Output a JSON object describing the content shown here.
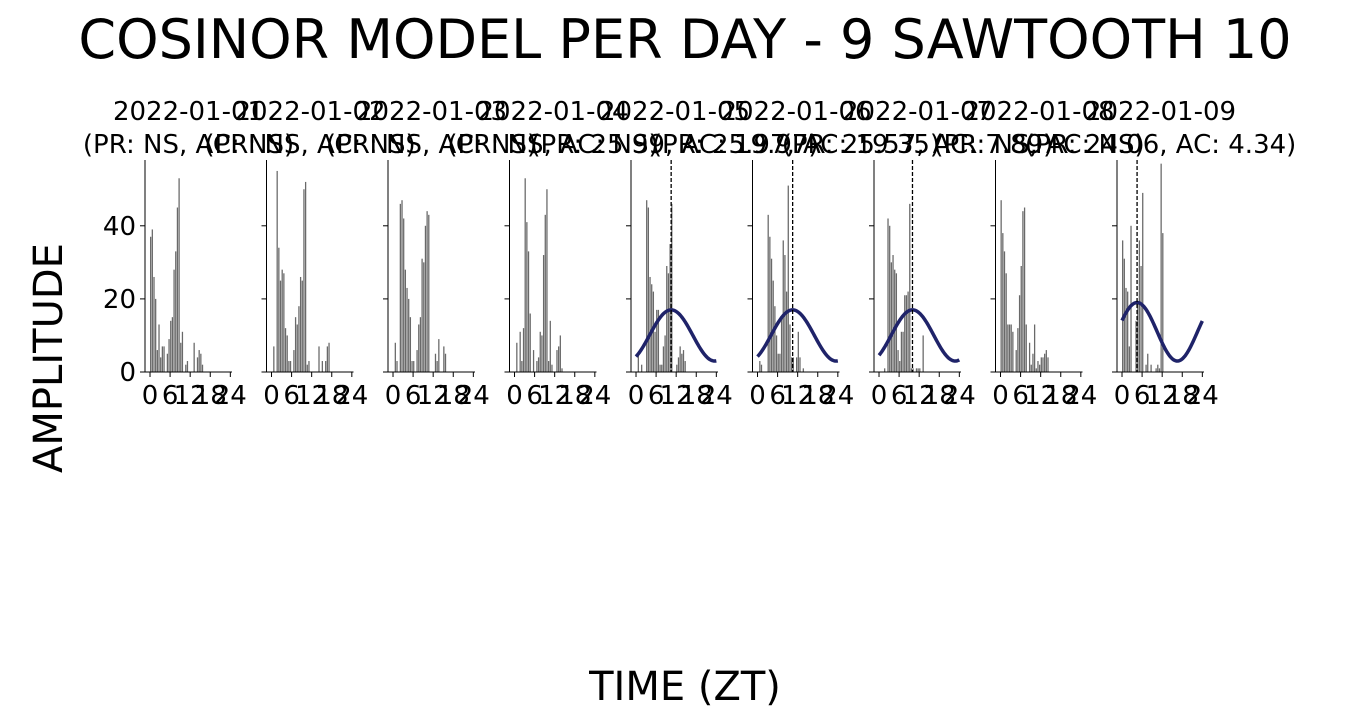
{
  "title": "COSINOR MODEL PER DAY - 9 SAWTOOTH 10",
  "xlabel": "TIME (ZT)",
  "ylabel": "AMPLITUDE",
  "colors": {
    "bars": "#696969",
    "fit": "#1f2369",
    "acrophase_line": "#000000",
    "axes": "#000000"
  },
  "chart_data": [
    {
      "type": "bar",
      "subtitle_line1": "2022-01-01",
      "subtitle_line2": "(PR: NS, AC: NS)",
      "x_ticks": [
        "0",
        "6",
        "12",
        "18",
        "24"
      ],
      "xlim": [
        -1.5,
        24.5
      ],
      "ylim": [
        0,
        58
      ],
      "y_ticks": [
        "0",
        "20",
        "40"
      ],
      "series": [
        {
          "type": "bar",
          "x_start": 0,
          "x_step": 0.5,
          "width": 0.5,
          "values": [
            37,
            39,
            26,
            20,
            6,
            13,
            4,
            7,
            7,
            0,
            5,
            9,
            14,
            15,
            28,
            33,
            45,
            53,
            8,
            11,
            0,
            2,
            3,
            0,
            0,
            0,
            8,
            0,
            4,
            6,
            5,
            2,
            0,
            0,
            0,
            0,
            0,
            0,
            0,
            0,
            0,
            0,
            0,
            0,
            0,
            0,
            0,
            0
          ]
        }
      ]
    },
    {
      "type": "bar",
      "subtitle_line1": "2022-01-02",
      "subtitle_line2": "(PR: NS, AC: NS)",
      "x_ticks": [
        "0",
        "6",
        "12",
        "18",
        "24"
      ],
      "xlim": [
        -1.5,
        24.5
      ],
      "ylim": [
        0,
        58
      ],
      "y_ticks": [
        "0",
        "20",
        "40"
      ],
      "series": [
        {
          "type": "bar",
          "x_start": 0,
          "x_step": 0.5,
          "width": 0.5,
          "values": [
            0,
            7,
            0,
            55,
            34,
            25,
            28,
            27,
            12,
            10,
            3,
            3,
            0,
            6,
            15,
            13,
            18,
            26,
            25,
            50,
            52,
            2,
            3,
            0,
            0,
            0,
            0,
            0,
            7,
            0,
            3,
            0,
            3,
            7,
            8,
            0,
            0,
            0,
            0,
            0,
            0,
            0,
            0,
            0,
            0,
            0,
            0,
            0
          ]
        }
      ]
    },
    {
      "type": "bar",
      "subtitle_line1": "2022-01-03",
      "subtitle_line2": "(PR: NS, AC: NS)",
      "x_ticks": [
        "0",
        "6",
        "12",
        "18",
        "24"
      ],
      "xlim": [
        -1.5,
        24.5
      ],
      "ylim": [
        0,
        58
      ],
      "y_ticks": [
        "0",
        "20",
        "40"
      ],
      "series": [
        {
          "type": "bar",
          "x_start": 0,
          "x_step": 0.5,
          "width": 0.5,
          "values": [
            0,
            8,
            3,
            0,
            46,
            47,
            42,
            28,
            23,
            20,
            15,
            3,
            3,
            0,
            6,
            13,
            15,
            31,
            30,
            40,
            44,
            43,
            0,
            0,
            0,
            5,
            3,
            9,
            0,
            0,
            7,
            5,
            0,
            0,
            0,
            0,
            0,
            0,
            0,
            0,
            0,
            0,
            0,
            0,
            0,
            0,
            0,
            0
          ]
        }
      ]
    },
    {
      "type": "bar",
      "subtitle_line1": "2022-01-04",
      "subtitle_line2": "(PR: NS, AC: NS)",
      "x_ticks": [
        "0",
        "6",
        "12",
        "18",
        "24"
      ],
      "xlim": [
        -1.5,
        24.5
      ],
      "ylim": [
        0,
        58
      ],
      "y_ticks": [
        "0",
        "20",
        "40"
      ],
      "series": [
        {
          "type": "bar",
          "x_start": 0,
          "x_step": 0.5,
          "width": 0.5,
          "values": [
            0,
            8,
            0,
            11,
            3,
            12,
            53,
            41,
            33,
            16,
            0,
            6,
            0,
            3,
            4,
            11,
            10,
            32,
            43,
            50,
            3,
            14,
            2,
            0,
            0,
            6,
            7,
            10,
            1,
            0,
            0,
            0,
            0,
            0,
            0,
            0,
            0,
            0,
            0,
            0,
            0,
            0,
            0,
            0,
            0,
            0,
            0,
            0
          ]
        }
      ]
    },
    {
      "type": "bar",
      "subtitle_line1": "2022-01-05",
      "subtitle_line2": "(PR: 25.99, AC: 19.97)",
      "x_ticks": [
        "0",
        "6",
        "12",
        "18",
        "24"
      ],
      "xlim": [
        -1.5,
        24.5
      ],
      "ylim": [
        0,
        58
      ],
      "y_ticks": [
        "0",
        "20",
        "40"
      ],
      "acrophase": 10.5,
      "fit": {
        "mesor": 10,
        "amplitude": 7,
        "period": 25.99
      },
      "series": [
        {
          "type": "bar",
          "x_start": 0,
          "x_step": 0.5,
          "width": 0.5,
          "values": [
            0,
            5,
            0,
            2,
            0,
            0,
            47,
            45,
            26,
            24,
            22,
            11,
            17,
            17,
            2,
            2,
            7,
            10,
            29,
            27,
            35,
            46,
            0,
            0,
            2,
            4,
            7,
            5,
            6,
            3,
            0,
            0,
            0,
            0,
            0,
            0,
            0,
            0,
            0,
            0,
            0,
            0,
            0,
            0,
            0,
            0,
            0,
            0
          ]
        }
      ]
    },
    {
      "type": "bar",
      "subtitle_line1": "2022-01-06",
      "subtitle_line2": "(PR: 25.97, AC: 19.35)",
      "x_ticks": [
        "0",
        "6",
        "12",
        "18",
        "24"
      ],
      "xlim": [
        -1.5,
        24.5
      ],
      "ylim": [
        0,
        58
      ],
      "y_ticks": [
        "0",
        "20",
        "40"
      ],
      "acrophase": 10.5,
      "fit": {
        "mesor": 10,
        "amplitude": 7,
        "period": 25.97
      },
      "series": [
        {
          "type": "bar",
          "x_start": 0,
          "x_step": 0.5,
          "width": 0.5,
          "values": [
            0,
            3,
            2,
            0,
            0,
            0,
            43,
            37,
            31,
            25,
            18,
            10,
            5,
            5,
            15,
            36,
            32,
            22,
            51,
            13,
            4,
            4,
            0,
            4,
            11,
            4,
            0,
            1,
            0,
            0,
            0,
            0,
            0,
            0,
            0,
            0,
            0,
            0,
            0,
            0,
            0,
            0,
            0,
            0,
            0,
            0,
            0,
            0
          ]
        }
      ]
    },
    {
      "type": "bar",
      "subtitle_line1": "2022-01-07",
      "subtitle_line2": "(PR: 25.57, AC: 7.89)",
      "x_ticks": [
        "0",
        "6",
        "12",
        "18",
        "24"
      ],
      "xlim": [
        -1.5,
        24.5
      ],
      "ylim": [
        0,
        58
      ],
      "y_ticks": [
        "0",
        "20",
        "40"
      ],
      "acrophase": 10,
      "fit": {
        "mesor": 10,
        "amplitude": 7,
        "period": 25.57
      },
      "series": [
        {
          "type": "bar",
          "x_start": 0,
          "x_step": 0.5,
          "width": 0.5,
          "values": [
            0,
            0,
            0,
            1,
            0,
            42,
            40,
            30,
            32,
            28,
            27,
            6,
            3,
            11,
            11,
            21,
            21,
            22,
            46,
            1,
            1,
            0,
            1,
            1,
            1,
            0,
            10,
            0,
            0,
            0,
            0,
            0,
            0,
            0,
            0,
            0,
            0,
            0,
            0,
            0,
            0,
            0,
            0,
            0,
            0,
            0,
            0,
            0
          ]
        }
      ]
    },
    {
      "type": "bar",
      "subtitle_line1": "2022-01-08",
      "subtitle_line2": "(PR: NS, AC: NS)",
      "x_ticks": [
        "0",
        "6",
        "12",
        "18",
        "24"
      ],
      "xlim": [
        -1.5,
        24.5
      ],
      "ylim": [
        0,
        58
      ],
      "y_ticks": [
        "0",
        "20",
        "40"
      ],
      "series": [
        {
          "type": "bar",
          "x_start": 0,
          "x_step": 0.5,
          "width": 0.5,
          "values": [
            47,
            38,
            33,
            27,
            13,
            13,
            13,
            11,
            0,
            6,
            12,
            21,
            29,
            44,
            45,
            13,
            0,
            8,
            2,
            5,
            13,
            1,
            3,
            2,
            4,
            4,
            5,
            6,
            4,
            0,
            0,
            0,
            0,
            0,
            0,
            0,
            0,
            0,
            0,
            0,
            0,
            0,
            0,
            0,
            0,
            0,
            0,
            0
          ]
        }
      ]
    },
    {
      "type": "bar",
      "subtitle_line1": "2022-01-09",
      "subtitle_line2": "(PR: 24.06, AC: 4.34)",
      "x_ticks": [
        "0",
        "6",
        "12",
        "18",
        "24"
      ],
      "xlim": [
        -1.5,
        24.5
      ],
      "ylim": [
        0,
        58
      ],
      "y_ticks": [
        "0",
        "20",
        "40"
      ],
      "acrophase": 4.5,
      "fit": {
        "mesor": 11,
        "amplitude": 8,
        "period": 24.06
      },
      "series": [
        {
          "type": "bar",
          "x_start": 0,
          "x_step": 0.5,
          "width": 0.5,
          "values": [
            36,
            31,
            23,
            22,
            7,
            40,
            0,
            0,
            14,
            19,
            36,
            29,
            49,
            0,
            2,
            5,
            0,
            2,
            0,
            0,
            1,
            2,
            1,
            57,
            38,
            0,
            0,
            0,
            0,
            0,
            0,
            0,
            0,
            0,
            0,
            0,
            0,
            0,
            0,
            0,
            0,
            0,
            0,
            0,
            0,
            0,
            0,
            0
          ]
        }
      ]
    }
  ]
}
